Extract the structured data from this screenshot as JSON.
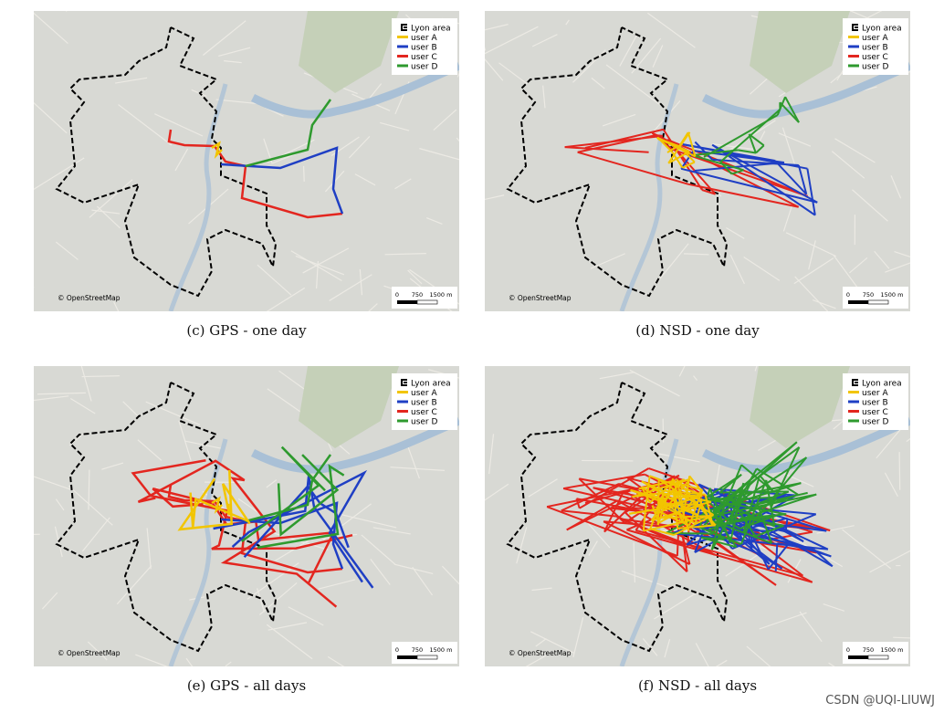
{
  "legend": [
    {
      "label": "Lyon area",
      "color": "#000000"
    },
    {
      "label": "user A",
      "color": "#f2c500"
    },
    {
      "label": "user B",
      "color": "#1f3fc4"
    },
    {
      "label": "user C",
      "color": "#e3261f"
    },
    {
      "label": "user D",
      "color": "#2e9a2e"
    }
  ],
  "attribution": "© OpenStreetMap",
  "scale_labels": [
    "0",
    "750",
    "1500 m"
  ],
  "panels": [
    {
      "caption": "(c)  GPS - one day",
      "kind": "gps-day"
    },
    {
      "caption": "(d)  NSD - one day",
      "kind": "nsd-day"
    },
    {
      "caption": "(e)  GPS - all days",
      "kind": "gps-all"
    },
    {
      "caption": "(f)  NSD - all days",
      "kind": "nsd-all"
    }
  ],
  "watermark": "CSDN @UQI-LIUWJ"
}
